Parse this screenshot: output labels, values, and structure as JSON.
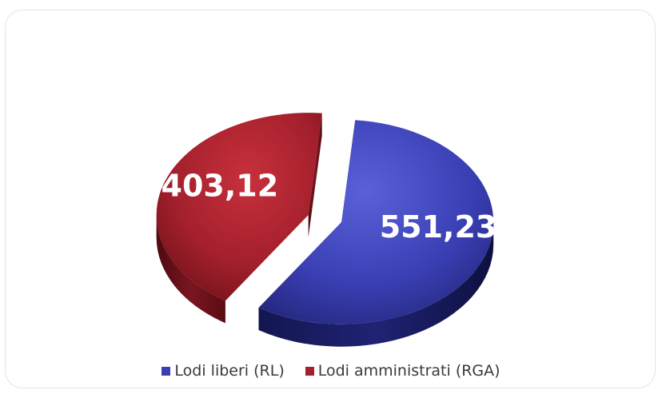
{
  "chart_data": {
    "type": "pie",
    "title": "",
    "categories": [
      "Lodi liberi (RL)",
      "Lodi amministrati (RGA)"
    ],
    "values": [
      551.23,
      403.12
    ],
    "value_labels": [
      "551,23",
      "403,12"
    ],
    "colors": [
      "#3a3fb4",
      "#a3202c"
    ],
    "legend_position": "bottom",
    "style": "3d exploded"
  }
}
